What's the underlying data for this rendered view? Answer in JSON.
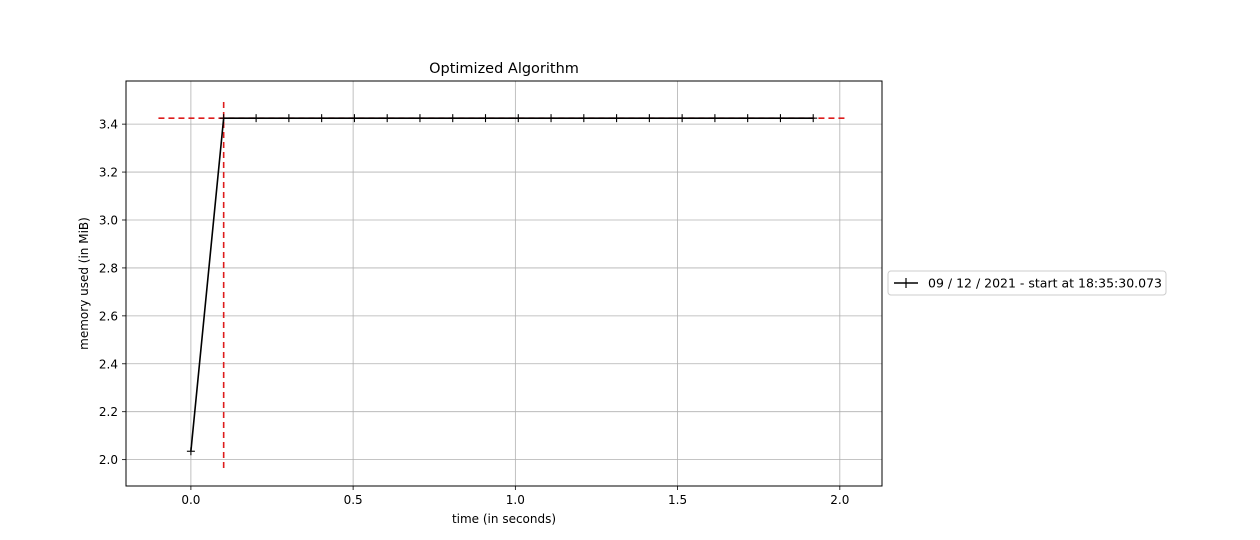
{
  "chart_data": {
    "type": "line",
    "title": "Optimized Algorithm",
    "xlabel": "time (in seconds)",
    "ylabel": "memory used (in MiB)",
    "xlim": [
      -0.2,
      2.13
    ],
    "ylim": [
      1.89,
      3.58
    ],
    "xticks": [
      0.0,
      0.5,
      1.0,
      1.5,
      2.0
    ],
    "xtick_labels": [
      "0.0",
      "0.5",
      "1.0",
      "1.5",
      "2.0"
    ],
    "yticks": [
      2.0,
      2.2,
      2.4,
      2.6,
      2.8,
      3.0,
      3.2,
      3.4
    ],
    "ytick_labels": [
      "2.0",
      "2.2",
      "2.4",
      "2.6",
      "2.8",
      "3.0",
      "3.2",
      "3.4"
    ],
    "grid": true,
    "legend": {
      "placement": "outside-right",
      "entries": [
        "09 / 12 / 2021 - start at 18:35:30.073"
      ]
    },
    "series": [
      {
        "name": "09 / 12 / 2021 - start at 18:35:30.073",
        "color": "#000000",
        "marker": "+",
        "x": [
          0.0,
          0.101,
          0.201,
          0.302,
          0.403,
          0.504,
          0.605,
          0.706,
          0.807,
          0.908,
          1.009,
          1.11,
          1.211,
          1.312,
          1.413,
          1.514,
          1.615,
          1.716,
          1.817,
          1.918
        ],
        "y": [
          2.035,
          3.425,
          3.425,
          3.425,
          3.425,
          3.425,
          3.425,
          3.425,
          3.425,
          3.425,
          3.425,
          3.425,
          3.425,
          3.425,
          3.425,
          3.425,
          3.425,
          3.425,
          3.425,
          3.425
        ]
      }
    ],
    "reference_lines": [
      {
        "orientation": "horizontal",
        "y": 3.425,
        "x_from": -0.1,
        "x_to": 2.02,
        "color": "#dd1c1c",
        "style": "dashed"
      },
      {
        "orientation": "vertical",
        "x": 0.101,
        "y_from": 1.965,
        "y_to": 3.5,
        "color": "#dd1c1c",
        "style": "dashed"
      }
    ]
  }
}
